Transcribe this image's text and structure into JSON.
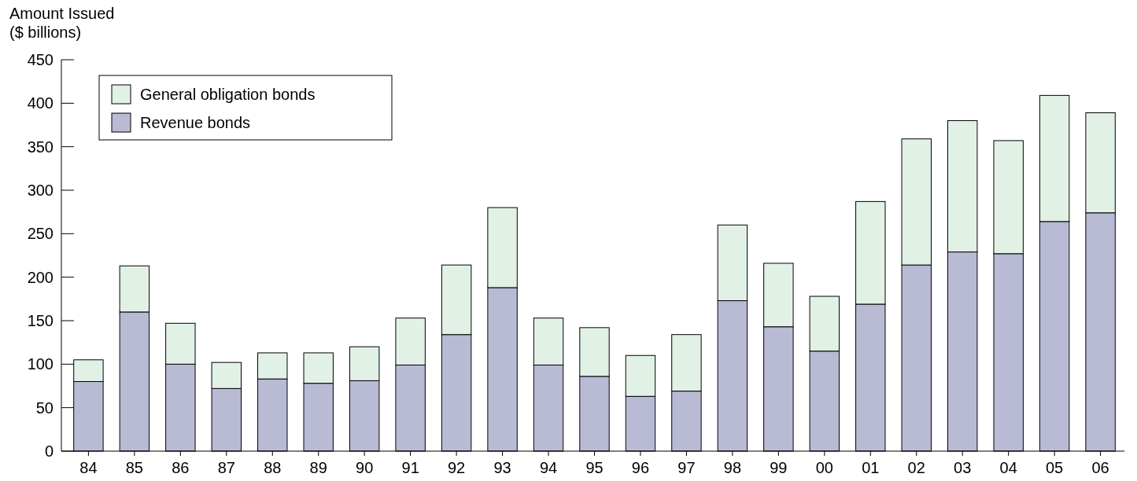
{
  "chart_data": {
    "type": "bar",
    "ylabel": "Amount Issued\n($ billions)",
    "stacked": true,
    "legend": "top left",
    "categories": [
      "84",
      "85",
      "86",
      "87",
      "88",
      "89",
      "90",
      "91",
      "92",
      "93",
      "94",
      "95",
      "96",
      "97",
      "98",
      "99",
      "00",
      "01",
      "02",
      "03",
      "04",
      "05",
      "06"
    ],
    "series": [
      {
        "name": "Revenue bonds",
        "color": "#b9bbd5",
        "values": [
          80,
          160,
          100,
          72,
          83,
          78,
          81,
          99,
          134,
          188,
          99,
          86,
          63,
          69,
          173,
          143,
          115,
          169,
          214,
          229,
          227,
          264,
          274
        ]
      },
      {
        "name": "General obligation bonds",
        "color": "#e2f1e6",
        "values": [
          25,
          53,
          47,
          30,
          30,
          35,
          39,
          54,
          80,
          92,
          54,
          56,
          47,
          65,
          87,
          73,
          63,
          118,
          145,
          151,
          130,
          145,
          115
        ]
      }
    ],
    "ylim": [
      0,
      450
    ],
    "yticks": [
      0,
      50,
      100,
      150,
      200,
      250,
      300,
      350,
      400,
      450
    ],
    "grid": false
  }
}
